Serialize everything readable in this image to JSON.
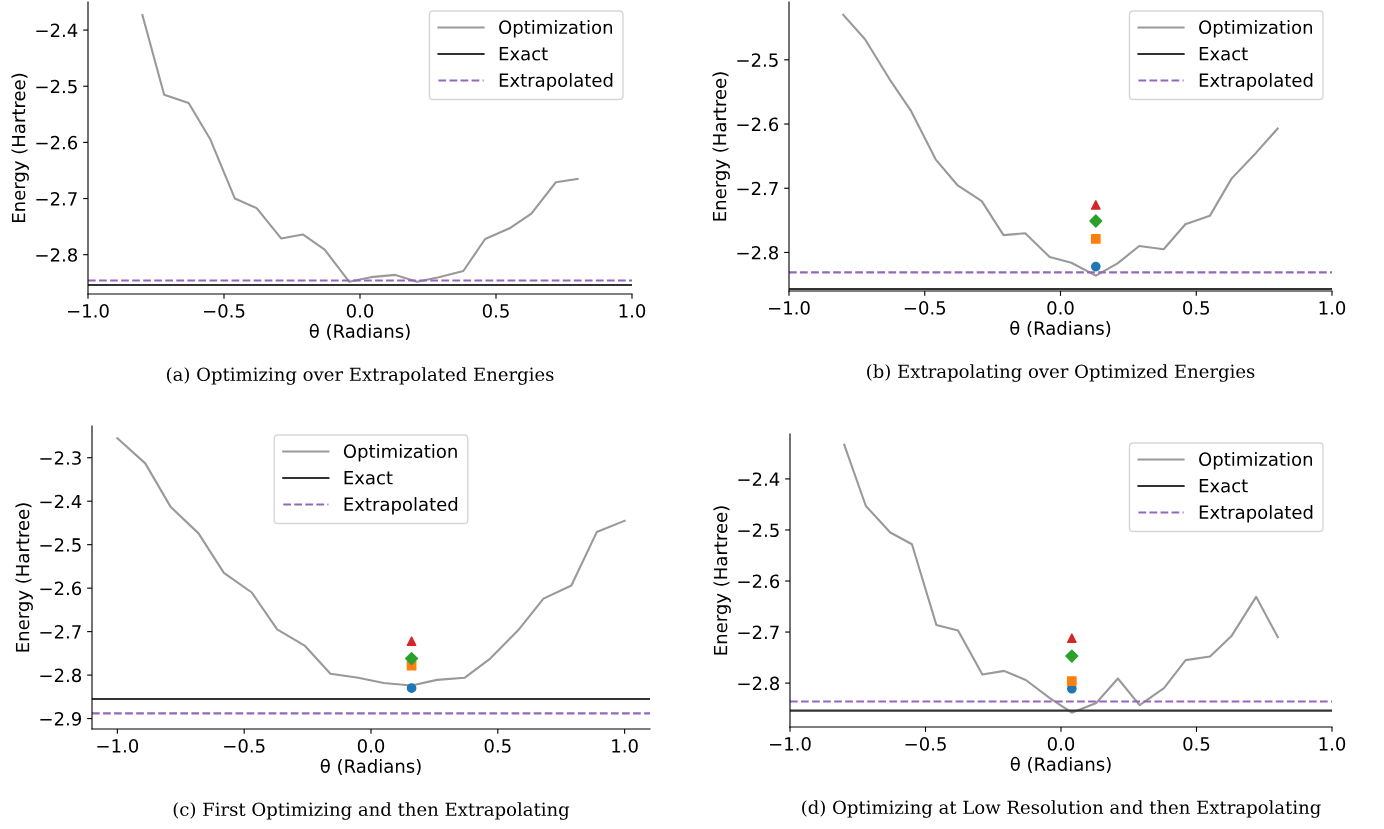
{
  "chart_data": [
    {
      "type": "line",
      "title": "(a) Optimizing over Extrapolated Energies",
      "xlabel": "θ (Radians)",
      "ylabel": "Energy (Hartree)",
      "xlim": [
        -1.0,
        1.0
      ],
      "xticks": [
        {
          "value": -1,
          "label": "−1.0"
        },
        {
          "value": -0.5,
          "label": "−0.5"
        },
        {
          "value": 0,
          "label": "0.0"
        },
        {
          "value": 0.5,
          "label": "0.5"
        },
        {
          "value": 1,
          "label": "1.0"
        }
      ],
      "ylim": [
        -2.87,
        -2.35
      ],
      "yticks": [
        -2.8,
        -2.7,
        -2.6,
        -2.5,
        -2.4
      ],
      "legend": "top right",
      "grid": false,
      "x": [
        -0.8,
        -0.72,
        -0.63,
        -0.55,
        -0.46,
        -0.38,
        -0.29,
        -0.21,
        -0.13,
        -0.04,
        0.04,
        0.13,
        0.21,
        0.29,
        0.38,
        0.46,
        0.55,
        0.63,
        0.72,
        0.8
      ],
      "series": [
        {
          "name": "Optimization",
          "color": "#999999",
          "values": [
            -2.373,
            -2.515,
            -2.53,
            -2.595,
            -2.7,
            -2.717,
            -2.771,
            -2.764,
            -2.791,
            -2.848,
            -2.84,
            -2.836,
            -2.848,
            -2.84,
            -2.829,
            -2.772,
            -2.753,
            -2.727,
            -2.671,
            -2.665
          ]
        }
      ],
      "ref_lines": [
        {
          "axis": "y",
          "value": -2.854,
          "label": "Exact",
          "color": "#333333",
          "line_style": "solid"
        },
        {
          "axis": "y",
          "value": -2.846,
          "label": "Extrapolated",
          "color": "#9467bd",
          "line_style": "dashed"
        }
      ]
    },
    {
      "type": "line",
      "title": "(b) Extrapolating over Optimized Energies",
      "xlabel": "θ (Radians)",
      "ylabel": "Energy (Hartree)",
      "xlim": [
        -1.0,
        1.0
      ],
      "xticks": [
        {
          "value": -1,
          "label": "−1.0"
        },
        {
          "value": -0.5,
          "label": "−0.5"
        },
        {
          "value": 0,
          "label": "0.0"
        },
        {
          "value": 0.5,
          "label": "0.5"
        },
        {
          "value": 1,
          "label": "1.0"
        }
      ],
      "ylim": [
        -2.86,
        -2.41
      ],
      "yticks": [
        -2.8,
        -2.7,
        -2.6,
        -2.5
      ],
      "legend": "top right",
      "grid": false,
      "x": [
        -0.8,
        -0.72,
        -0.63,
        -0.55,
        -0.46,
        -0.38,
        -0.29,
        -0.21,
        -0.13,
        -0.04,
        0.04,
        0.13,
        0.21,
        0.29,
        0.38,
        0.46,
        0.55,
        0.63,
        0.72,
        0.8
      ],
      "series": [
        {
          "name": "Optimization",
          "color": "#999999",
          "values": [
            -2.43,
            -2.468,
            -2.53,
            -2.58,
            -2.655,
            -2.695,
            -2.72,
            -2.773,
            -2.77,
            -2.807,
            -2.816,
            -2.836,
            -2.817,
            -2.79,
            -2.795,
            -2.756,
            -2.743,
            -2.685,
            -2.645,
            -2.607
          ]
        },
        {
          "type": "scatter",
          "marker": "circle",
          "color": "#1f77b4",
          "x": [
            0.13
          ],
          "values": [
            -2.822
          ]
        },
        {
          "type": "scatter",
          "marker": "square",
          "color": "#ff7f0e",
          "x": [
            0.13
          ],
          "values": [
            -2.779
          ]
        },
        {
          "type": "scatter",
          "marker": "diamond",
          "color": "#2ca02c",
          "x": [
            0.13
          ],
          "values": [
            -2.751
          ]
        },
        {
          "type": "scatter",
          "marker": "triangle",
          "color": "#d62728",
          "x": [
            0.13
          ],
          "values": [
            -2.726
          ]
        }
      ],
      "ref_lines": [
        {
          "axis": "y",
          "value": -2.857,
          "label": "Exact",
          "color": "#333333",
          "line_style": "solid"
        },
        {
          "axis": "y",
          "value": -2.831,
          "label": "Extrapolated",
          "color": "#9467bd",
          "line_style": "dashed"
        }
      ]
    },
    {
      "type": "line",
      "title": "(c) First Optimizing and then Extrapolating",
      "xlabel": "θ (Radians)",
      "ylabel": "Energy (Hartree)",
      "xlim": [
        -1.1,
        1.1
      ],
      "xticks": [
        {
          "value": -1,
          "label": "−1.0"
        },
        {
          "value": -0.5,
          "label": "−0.5"
        },
        {
          "value": 0,
          "label": "0.0"
        },
        {
          "value": 0.5,
          "label": "0.5"
        },
        {
          "value": 1,
          "label": "1.0"
        }
      ],
      "ylim": [
        -2.924,
        -2.227
      ],
      "yticks": [
        -2.9,
        -2.8,
        -2.7,
        -2.6,
        -2.5,
        -2.4,
        -2.3
      ],
      "legend": "top",
      "grid": false,
      "x": [
        -1.0,
        -0.89,
        -0.79,
        -0.68,
        -0.58,
        -0.47,
        -0.37,
        -0.26,
        -0.16,
        -0.05,
        0.05,
        0.16,
        0.26,
        0.37,
        0.47,
        0.58,
        0.68,
        0.79,
        0.89,
        1.0
      ],
      "series": [
        {
          "name": "Optimization",
          "color": "#999999",
          "values": [
            -2.255,
            -2.313,
            -2.413,
            -2.474,
            -2.565,
            -2.61,
            -2.695,
            -2.733,
            -2.797,
            -2.806,
            -2.818,
            -2.824,
            -2.811,
            -2.806,
            -2.762,
            -2.697,
            -2.624,
            -2.594,
            -2.471,
            -2.445
          ]
        },
        {
          "type": "scatter",
          "marker": "circle",
          "color": "#1f77b4",
          "x": [
            0.16
          ],
          "values": [
            -2.83
          ]
        },
        {
          "type": "scatter",
          "marker": "square",
          "color": "#ff7f0e",
          "x": [
            0.16
          ],
          "values": [
            -2.778
          ]
        },
        {
          "type": "scatter",
          "marker": "diamond",
          "color": "#2ca02c",
          "x": [
            0.16
          ],
          "values": [
            -2.762
          ]
        },
        {
          "type": "scatter",
          "marker": "triangle",
          "color": "#d62728",
          "x": [
            0.16
          ],
          "values": [
            -2.722
          ]
        }
      ],
      "ref_lines": [
        {
          "axis": "y",
          "value": -2.855,
          "label": "Exact",
          "color": "#333333",
          "line_style": "solid"
        },
        {
          "axis": "y",
          "value": -2.888,
          "label": "Extrapolated",
          "color": "#9467bd",
          "line_style": "dashed"
        }
      ]
    },
    {
      "type": "line",
      "title": "(d) Optimizing at Low Resolution and then Extrapolating",
      "xlabel": "θ (Radians)",
      "ylabel": "Energy (Hartree)",
      "xlim": [
        -1.0,
        1.0
      ],
      "xticks": [
        {
          "value": -1,
          "label": "−1.0"
        },
        {
          "value": -0.5,
          "label": "−0.5"
        },
        {
          "value": 0,
          "label": "0.0"
        },
        {
          "value": 0.5,
          "label": "0.5"
        },
        {
          "value": 1,
          "label": "1.0"
        }
      ],
      "ylim": [
        -2.886,
        -2.312
      ],
      "yticks": [
        -2.8,
        -2.7,
        -2.6,
        -2.5,
        -2.4
      ],
      "legend": "top right",
      "grid": false,
      "x": [
        -0.8,
        -0.72,
        -0.63,
        -0.55,
        -0.46,
        -0.38,
        -0.29,
        -0.21,
        -0.13,
        -0.04,
        0.04,
        0.13,
        0.21,
        0.29,
        0.38,
        0.46,
        0.55,
        0.63,
        0.72,
        0.8
      ],
      "series": [
        {
          "name": "Optimization",
          "color": "#999999",
          "values": [
            -2.333,
            -2.453,
            -2.505,
            -2.528,
            -2.686,
            -2.697,
            -2.783,
            -2.776,
            -2.794,
            -2.83,
            -2.858,
            -2.839,
            -2.791,
            -2.843,
            -2.81,
            -2.755,
            -2.748,
            -2.707,
            -2.631,
            -2.71
          ]
        },
        {
          "type": "scatter",
          "marker": "circle",
          "color": "#1f77b4",
          "x": [
            0.04
          ],
          "values": [
            -2.811
          ]
        },
        {
          "type": "scatter",
          "marker": "square",
          "color": "#ff7f0e",
          "x": [
            0.04
          ],
          "values": [
            -2.796
          ]
        },
        {
          "type": "scatter",
          "marker": "diamond",
          "color": "#2ca02c",
          "x": [
            0.04
          ],
          "values": [
            -2.747
          ]
        },
        {
          "type": "scatter",
          "marker": "triangle",
          "color": "#d62728",
          "x": [
            0.04
          ],
          "values": [
            -2.712
          ]
        }
      ],
      "ref_lines": [
        {
          "axis": "y",
          "value": -2.854,
          "label": "Exact",
          "color": "#333333",
          "line_style": "solid"
        },
        {
          "axis": "y",
          "value": -2.836,
          "label": "Extrapolated",
          "color": "#9467bd",
          "line_style": "dashed"
        }
      ]
    }
  ]
}
